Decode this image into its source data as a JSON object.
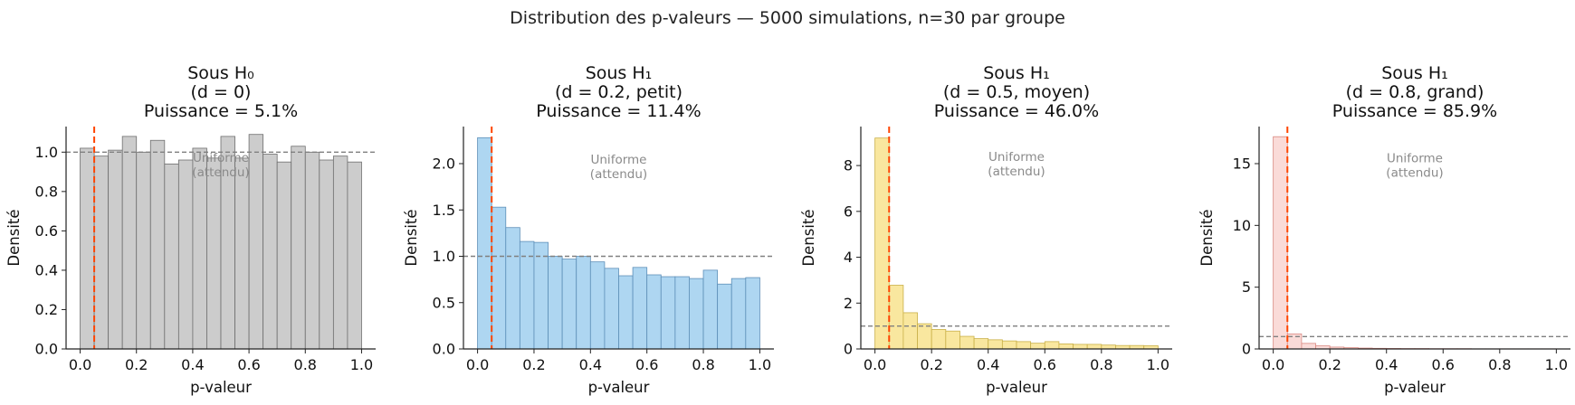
{
  "figure_title": "Distribution des p-valeurs — 5000 simulations, n=30 par groupe",
  "colors": {
    "alpha_line": "#ff4500",
    "uniform_line": "#808080",
    "axis": "#222222"
  },
  "chart_data": [
    {
      "type": "bar",
      "title": [
        "Sous H₀",
        "(d = 0)",
        "Puissance = 5.1%"
      ],
      "xlabel": "p-valeur",
      "ylabel": "Densité",
      "xlim": [
        -0.05,
        1.05
      ],
      "ylim": [
        0,
        1.13
      ],
      "xticks": [
        0.0,
        0.2,
        0.4,
        0.6,
        0.8,
        1.0
      ],
      "xtick_labels": [
        "0.0",
        "0.2",
        "0.4",
        "0.6",
        "0.8",
        "1.0"
      ],
      "yticks": [
        0.0,
        0.2,
        0.4,
        0.6,
        0.8,
        1.0
      ],
      "ytick_labels": [
        "0.0",
        "0.2",
        "0.4",
        "0.6",
        "0.8",
        "1.0"
      ],
      "bin_width": 0.05,
      "values": [
        1.02,
        0.98,
        1.01,
        1.08,
        1.0,
        1.06,
        0.94,
        0.96,
        1.02,
        0.97,
        1.08,
        0.97,
        1.09,
        0.99,
        0.95,
        1.03,
        1.0,
        0.96,
        0.98,
        0.95
      ],
      "fill": "#cccccc",
      "edge": "#6e6e6e",
      "alpha_line": 0.05,
      "uniform_density": 1.0,
      "annotation": [
        "Uniforme",
        "(attendu)"
      ],
      "annotation_pos": [
        0.5,
        0.95
      ]
    },
    {
      "type": "bar",
      "title": [
        "Sous H₁",
        "(d = 0.2, petit)",
        "Puissance = 11.4%"
      ],
      "xlabel": "p-valeur",
      "ylabel": "Densité",
      "xlim": [
        -0.05,
        1.05
      ],
      "ylim": [
        0,
        2.4
      ],
      "xticks": [
        0.0,
        0.2,
        0.4,
        0.6,
        0.8,
        1.0
      ],
      "xtick_labels": [
        "0.0",
        "0.2",
        "0.4",
        "0.6",
        "0.8",
        "1.0"
      ],
      "yticks": [
        0.0,
        0.5,
        1.0,
        1.5,
        2.0
      ],
      "ytick_labels": [
        "0.0",
        "0.5",
        "1.0",
        "1.5",
        "2.0"
      ],
      "bin_width": 0.05,
      "values": [
        2.28,
        1.53,
        1.31,
        1.16,
        1.15,
        1.0,
        0.97,
        1.0,
        0.94,
        0.87,
        0.79,
        0.88,
        0.8,
        0.78,
        0.78,
        0.76,
        0.85,
        0.7,
        0.76,
        0.77
      ],
      "fill": "#aed6f1",
      "edge": "#5d8fb8",
      "alpha_line": 0.05,
      "uniform_density": 1.0,
      "annotation": [
        "Uniforme",
        "(attendu)"
      ],
      "annotation_pos": [
        0.5,
        2.0
      ]
    },
    {
      "type": "bar",
      "title": [
        "Sous H₁",
        "(d = 0.5, moyen)",
        "Puissance = 46.0%"
      ],
      "xlabel": "p-valeur",
      "ylabel": "Densité",
      "xlim": [
        -0.05,
        1.05
      ],
      "ylim": [
        0,
        9.7
      ],
      "xticks": [
        0.0,
        0.2,
        0.4,
        0.6,
        0.8,
        1.0
      ],
      "xtick_labels": [
        "0.0",
        "0.2",
        "0.4",
        "0.6",
        "0.8",
        "1.0"
      ],
      "yticks": [
        0,
        2,
        4,
        6,
        8
      ],
      "ytick_labels": [
        "0",
        "2",
        "4",
        "6",
        "8"
      ],
      "bin_width": 0.05,
      "values": [
        9.2,
        2.78,
        1.58,
        1.1,
        0.85,
        0.78,
        0.55,
        0.45,
        0.4,
        0.35,
        0.32,
        0.25,
        0.32,
        0.22,
        0.2,
        0.2,
        0.17,
        0.15,
        0.15,
        0.14
      ],
      "fill": "#f9e79f",
      "edge": "#c9b048",
      "alpha_line": 0.05,
      "uniform_density": 1.0,
      "annotation": [
        "Uniforme",
        "(attendu)"
      ],
      "annotation_pos": [
        0.5,
        8.2
      ]
    },
    {
      "type": "bar",
      "title": [
        "Sous H₁",
        "(d = 0.8, grand)",
        "Puissance = 85.9%"
      ],
      "xlabel": "p-valeur",
      "ylabel": "Densité",
      "xlim": [
        -0.05,
        1.05
      ],
      "ylim": [
        0,
        18.0
      ],
      "xticks": [
        0.0,
        0.2,
        0.4,
        0.6,
        0.8,
        1.0
      ],
      "xtick_labels": [
        "0.0",
        "0.2",
        "0.4",
        "0.6",
        "0.8",
        "1.0"
      ],
      "yticks": [
        0,
        5,
        10,
        15
      ],
      "ytick_labels": [
        "0",
        "5",
        "10",
        "15"
      ],
      "bin_width": 0.05,
      "values": [
        17.18,
        1.22,
        0.45,
        0.25,
        0.15,
        0.1,
        0.07,
        0.05,
        0.04,
        0.03,
        0.03,
        0.02,
        0.02,
        0.02,
        0.01,
        0.01,
        0.01,
        0.01,
        0.01,
        0.01
      ],
      "fill": "#fadbd8",
      "edge": "#d98880",
      "alpha_line": 0.05,
      "uniform_density": 1.0,
      "annotation": [
        "Uniforme",
        "(attendu)"
      ],
      "annotation_pos": [
        0.5,
        15.1
      ]
    }
  ]
}
